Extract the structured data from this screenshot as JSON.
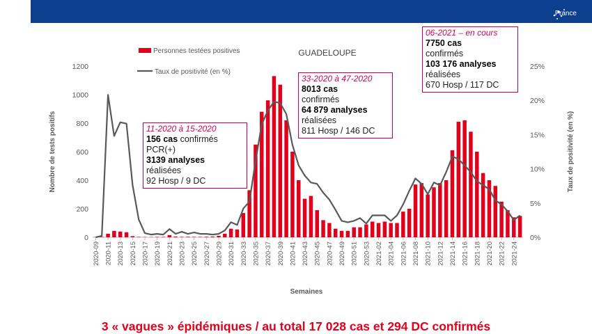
{
  "header": {
    "logo_text": "France"
  },
  "chart_data": {
    "type": "bar+line",
    "title": "GUADELOUPE",
    "xlabel": "Semaines",
    "ylabel": "Nombre de tests positifs",
    "y2label": "Taux de positivité (en %)",
    "ylim": [
      0,
      1200
    ],
    "y_ticks": [
      0,
      200,
      400,
      600,
      800,
      1000,
      1200
    ],
    "y2lim": [
      0,
      25
    ],
    "y2_ticks": [
      "0%",
      "5%",
      "10%",
      "15%",
      "20%",
      "25%"
    ],
    "categories": [
      "2020-09",
      "2020-10",
      "2020-11",
      "2020-12",
      "2020-13",
      "2020-14",
      "2020-15",
      "2020-16",
      "2020-17",
      "2020-18",
      "2020-19",
      "2020-20",
      "2020-21",
      "2020-22",
      "2020-23",
      "2020-24",
      "2020-25",
      "2020-26",
      "2020-27",
      "2020-28",
      "2020-29",
      "2020-30",
      "2020-31",
      "2020-32",
      "2020-33",
      "2020-34",
      "2020-35",
      "2020-36",
      "2020-37",
      "2020-38",
      "2020-39",
      "2020-40",
      "2020-41",
      "2020-42",
      "2020-43",
      "2020-44",
      "2020-45",
      "2020-46",
      "2020-47",
      "2020-48",
      "2020-49",
      "2020-50",
      "2020-51",
      "2020-52",
      "2020-53",
      "2021-01",
      "2021-02",
      "2021-03",
      "2021-04",
      "2021-05",
      "2021-06",
      "2021-07",
      "2021-08",
      "2021-09",
      "2021-10",
      "2021-11",
      "2021-12",
      "2021-13",
      "2021-14",
      "2021-15",
      "2021-16",
      "2021-17",
      "2021-18",
      "2021-19",
      "2021-20",
      "2021-21",
      "2021-22",
      "2021-23",
      "2021-24",
      "2021-25"
    ],
    "tick_labels": [
      "2020-09",
      "2020-11",
      "2020-13",
      "2020-15",
      "2020-17",
      "2020-19",
      "2020-21",
      "2020-23",
      "2020-25",
      "2020-27",
      "2020-29",
      "2020-31",
      "2020-33",
      "2020-35",
      "2020-37",
      "2020-39",
      "2020-41",
      "2020-43",
      "2020-45",
      "2020-47",
      "2020-49",
      "2020-51",
      "2020-53",
      "2021-02",
      "2021-04",
      "2021-06",
      "2021-08",
      "2021-10",
      "2021-12",
      "2021-14",
      "2021-16",
      "2021-18",
      "2021-20",
      "2021-22",
      "2021-24"
    ],
    "series": [
      {
        "name": "Personnes testées positives",
        "type": "bar",
        "color": "#e3001b",
        "axis": "left",
        "values": [
          2,
          3,
          25,
          45,
          40,
          35,
          8,
          3,
          2,
          2,
          3,
          3,
          15,
          5,
          3,
          4,
          3,
          3,
          4,
          5,
          10,
          25,
          60,
          55,
          170,
          330,
          650,
          880,
          960,
          1130,
          1070,
          820,
          600,
          400,
          270,
          290,
          190,
          120,
          100,
          60,
          45,
          45,
          70,
          70,
          90,
          110,
          100,
          110,
          100,
          100,
          180,
          200,
          370,
          380,
          300,
          350,
          380,
          400,
          610,
          810,
          820,
          740,
          600,
          450,
          400,
          360,
          250,
          190,
          140,
          150
        ]
      },
      {
        "name": "Taux de positivité (en %)",
        "type": "line",
        "color": "#595959",
        "axis": "right",
        "values": [
          0,
          0.2,
          20.8,
          14.8,
          16.8,
          16.6,
          7.6,
          2.6,
          0.6,
          0.4,
          0.5,
          0.4,
          1.2,
          0.5,
          0.8,
          0.5,
          0.7,
          0.5,
          0.5,
          0.4,
          0.5,
          1.0,
          2.2,
          1.8,
          4.2,
          5.2,
          11.2,
          16.5,
          18.5,
          19.8,
          19.6,
          18.0,
          13.5,
          10.5,
          9.0,
          8.0,
          7.8,
          6.5,
          5.5,
          4.0,
          2.4,
          2.2,
          2.4,
          2.8,
          2.0,
          3.2,
          3.2,
          3.2,
          2.4,
          3.2,
          4.8,
          6.8,
          8.6,
          7.8,
          6.3,
          8.0,
          7.6,
          9.5,
          11.8,
          11.4,
          10.5,
          9.5,
          8.2,
          7.6,
          7.0,
          5.4,
          4.8,
          3.8,
          2.5,
          3.2
        ]
      }
    ],
    "legend": [
      "Personnes testées positives",
      "Taux de positivité (en %)"
    ],
    "legend_position": "top-left"
  },
  "annotations": [
    {
      "period": "11-2020 à 15-2020",
      "cases": "156 cas",
      "cases_suffix": " confirmés",
      "cases_line2": "PCR(+)",
      "analyses": "3139 analyses",
      "analyses_suffix": "réalisées",
      "hosp": "92 Hosp / 9 DC"
    },
    {
      "period": "33-2020 à 47-2020",
      "cases": "8013 cas",
      "cases_suffix": "confirmés",
      "analyses": "64 879 analyses",
      "analyses_suffix": "réalisées",
      "hosp": "811 Hosp / 146 DC"
    },
    {
      "period": "06-2021 – en cours",
      "cases": "7750 cas",
      "cases_suffix": "confirmés",
      "analyses": "103 176 analyses",
      "analyses_suffix": "réalisées",
      "hosp": "670 Hosp / 117 DC"
    }
  ],
  "footer": {
    "title": "3 « vagues » épidémiques / au total 17 028 cas et 294 DC confirmés"
  }
}
